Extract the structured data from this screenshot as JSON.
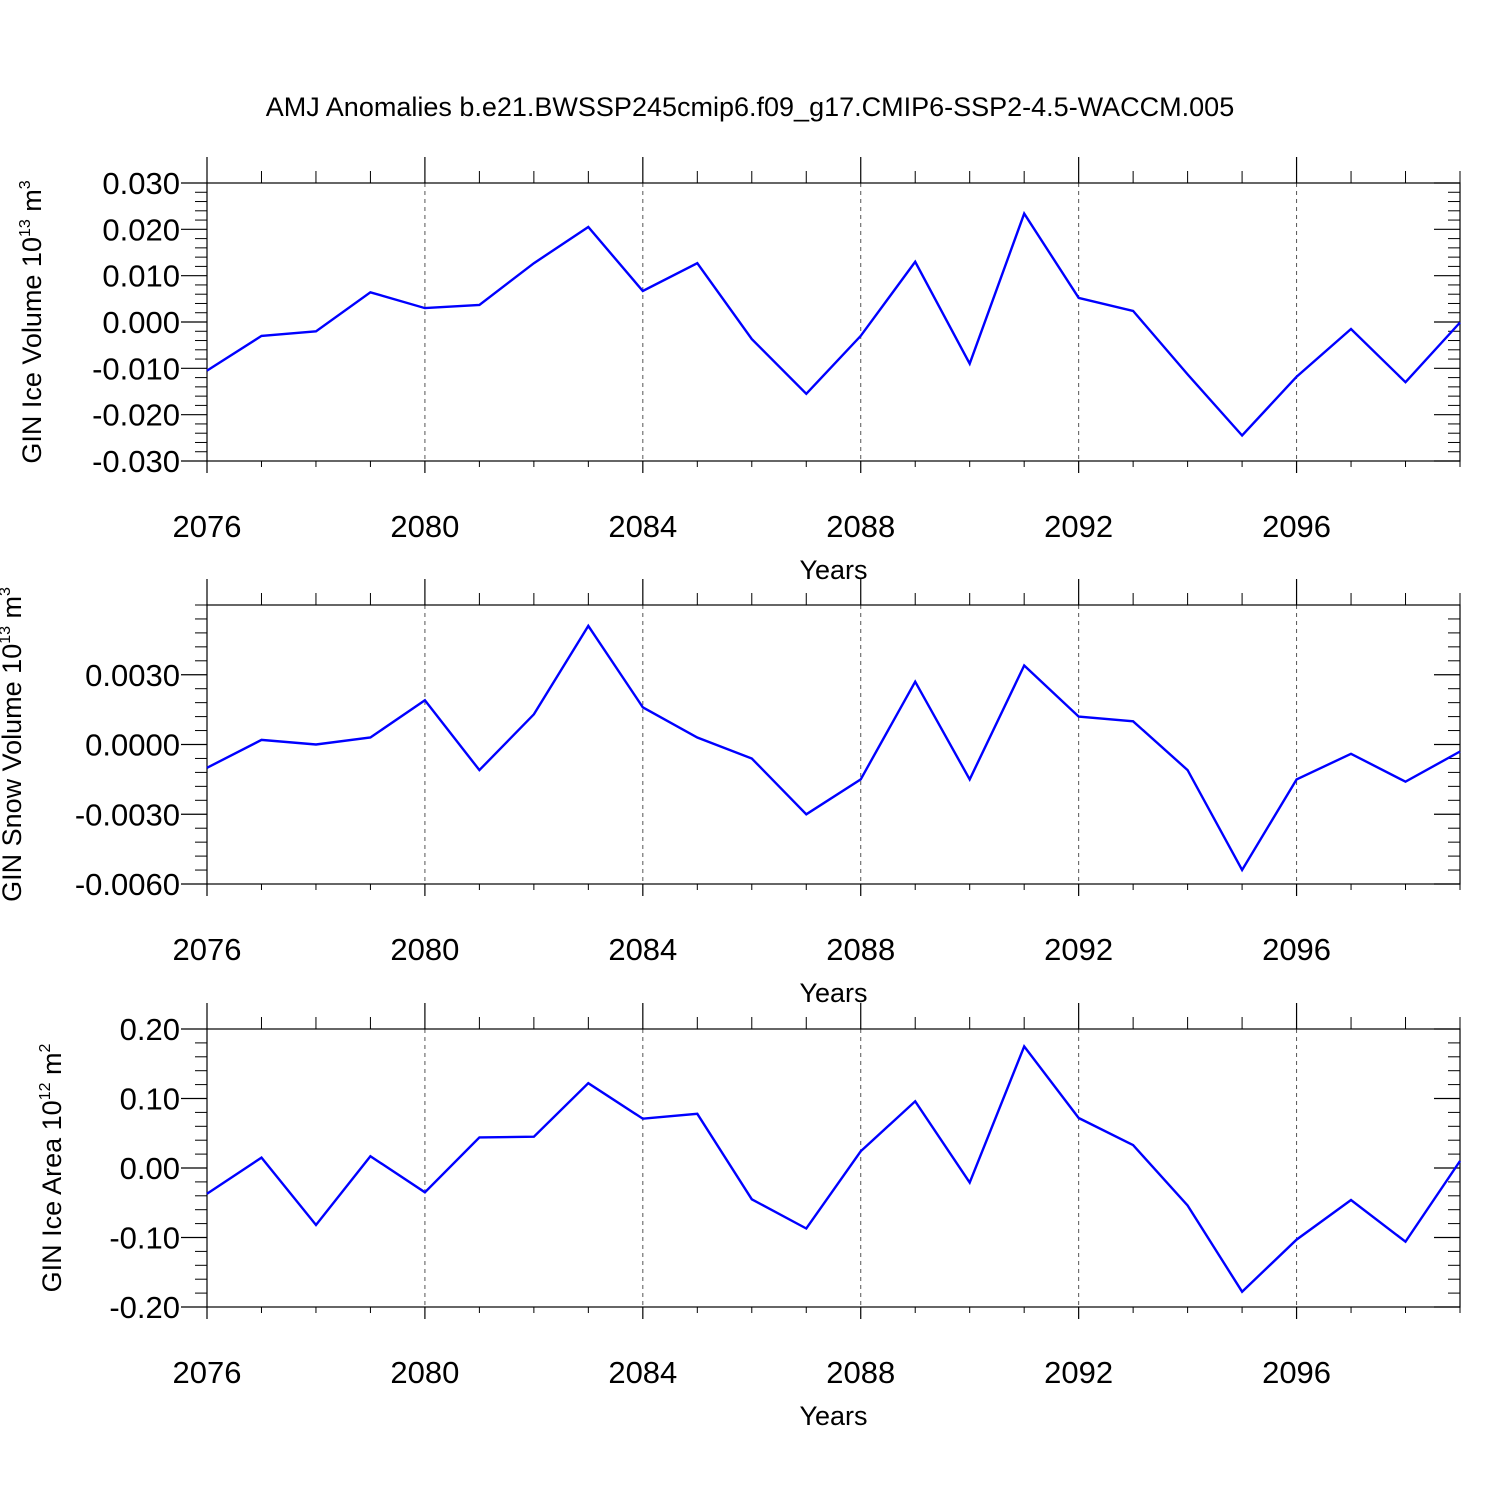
{
  "title": "AMJ Anomalies b.e21.BWSSP245cmip6.f09_g17.CMIP6-SSP2-4.5-WACCM.005",
  "line_color": "#0000ff",
  "chart_data": [
    {
      "type": "line",
      "ylabel_main": "GIN Ice Volume 10",
      "ylabel_exp": "13",
      "ylabel_unit": " m",
      "ylabel_unit_exp": "3",
      "xlabel": "Years",
      "xlim": [
        2076,
        2099
      ],
      "ylim": [
        -0.03,
        0.03
      ],
      "x_ticks": [
        2076,
        2080,
        2084,
        2088,
        2092,
        2096
      ],
      "x_tick_labels": [
        "2076",
        "2080",
        "2084",
        "2088",
        "2092",
        "2096"
      ],
      "y_ticks": [
        -0.03,
        -0.02,
        -0.01,
        0.0,
        0.01,
        0.02,
        0.03
      ],
      "y_tick_labels": [
        "-0.030",
        "-0.020",
        "-0.010",
        "0.000",
        "0.010",
        "0.020",
        "0.030"
      ],
      "grid": "vertical dashed at major x ticks",
      "series": [
        {
          "x": [
            2076,
            2077,
            2078,
            2079,
            2080,
            2081,
            2082,
            2083,
            2084,
            2085,
            2086,
            2087,
            2088,
            2089,
            2090,
            2091,
            2092,
            2093,
            2094,
            2095,
            2096,
            2097,
            2098,
            2099
          ],
          "values": [
            -0.0105,
            -0.003,
            -0.002,
            0.0064,
            0.003,
            0.0037,
            0.0127,
            0.0205,
            0.0067,
            0.0127,
            -0.0037,
            -0.0155,
            -0.003,
            0.013,
            -0.009,
            0.0234,
            0.0052,
            0.0024,
            -0.0113,
            -0.0245,
            -0.0118,
            -0.0015,
            -0.013,
            -0.0001
          ]
        }
      ]
    },
    {
      "type": "line",
      "ylabel_main": "GIN Snow Volume 10",
      "ylabel_exp": "13",
      "ylabel_unit": " m",
      "ylabel_unit_exp": "3",
      "xlabel": "Years",
      "xlim": [
        2076,
        2099
      ],
      "ylim": [
        -0.006,
        0.006
      ],
      "x_ticks": [
        2076,
        2080,
        2084,
        2088,
        2092,
        2096
      ],
      "x_tick_labels": [
        "2076",
        "2080",
        "2084",
        "2088",
        "2092",
        "2096"
      ],
      "y_ticks": [
        -0.006,
        -0.003,
        0.0,
        0.003
      ],
      "y_tick_labels": [
        "-0.0060",
        "-0.0030",
        "0.0000",
        "0.0030"
      ],
      "grid": "vertical dashed at major x ticks",
      "series": [
        {
          "x": [
            2076,
            2077,
            2078,
            2079,
            2080,
            2081,
            2082,
            2083,
            2084,
            2085,
            2086,
            2087,
            2088,
            2089,
            2090,
            2091,
            2092,
            2093,
            2094,
            2095,
            2096,
            2097,
            2098,
            2099
          ],
          "values": [
            -0.001,
            0.0002,
            0.0,
            0.0003,
            0.0019,
            -0.0011,
            0.0013,
            0.0051,
            0.0016,
            0.0003,
            -0.0006,
            -0.003,
            -0.0015,
            0.0027,
            -0.0015,
            0.0034,
            0.0012,
            0.001,
            -0.0011,
            -0.0054,
            -0.0015,
            -0.0004,
            -0.0016,
            -0.0003
          ]
        }
      ]
    },
    {
      "type": "line",
      "ylabel_main": "GIN Ice Area 10",
      "ylabel_exp": "12",
      "ylabel_unit": " m",
      "ylabel_unit_exp": "2",
      "xlabel": "Years",
      "xlim": [
        2076,
        2099
      ],
      "ylim": [
        -0.2,
        0.2
      ],
      "x_ticks": [
        2076,
        2080,
        2084,
        2088,
        2092,
        2096
      ],
      "x_tick_labels": [
        "2076",
        "2080",
        "2084",
        "2088",
        "2092",
        "2096"
      ],
      "y_ticks": [
        -0.2,
        -0.1,
        0.0,
        0.1,
        0.2
      ],
      "y_tick_labels": [
        "-0.20",
        "-0.10",
        "0.00",
        "0.10",
        "0.20"
      ],
      "grid": "vertical dashed at major x ticks",
      "series": [
        {
          "x": [
            2076,
            2077,
            2078,
            2079,
            2080,
            2081,
            2082,
            2083,
            2084,
            2085,
            2086,
            2087,
            2088,
            2089,
            2090,
            2091,
            2092,
            2093,
            2094,
            2095,
            2096,
            2097,
            2098,
            2099
          ],
          "values": [
            -0.037,
            0.015,
            -0.082,
            0.017,
            -0.035,
            0.044,
            0.045,
            0.122,
            0.071,
            0.078,
            -0.045,
            -0.087,
            0.024,
            0.096,
            -0.021,
            0.175,
            0.072,
            0.033,
            -0.054,
            -0.178,
            -0.103,
            -0.046,
            -0.106,
            0.01
          ]
        }
      ]
    }
  ]
}
